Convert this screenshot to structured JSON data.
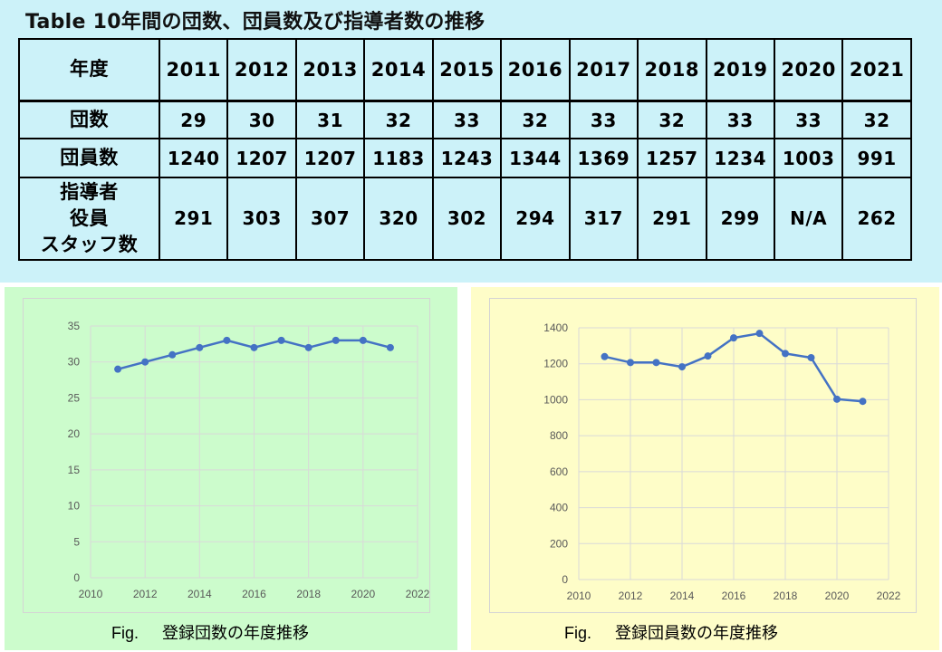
{
  "table": {
    "title": "Table 10年間の団数、団員数及び指導者数の推移",
    "row_labels": {
      "year": "年度",
      "groups": "団数",
      "members": "団員数",
      "leaders": [
        "指導者",
        "役員",
        "スタッフ数"
      ]
    },
    "years": [
      "2011",
      "2012",
      "2013",
      "2014",
      "2015",
      "2016",
      "2017",
      "2018",
      "2019",
      "2020",
      "2021"
    ],
    "groups": [
      "29",
      "30",
      "31",
      "32",
      "33",
      "32",
      "33",
      "32",
      "33",
      "33",
      "32"
    ],
    "members": [
      "1240",
      "1207",
      "1207",
      "1183",
      "1243",
      "1344",
      "1369",
      "1257",
      "1234",
      "1003",
      "991"
    ],
    "leaders": [
      "291",
      "303",
      "307",
      "320",
      "302",
      "294",
      "317",
      "291",
      "299",
      "N/A",
      "262"
    ]
  },
  "colors": {
    "table_bg": "#ccf2f9",
    "left_panel_bg": "#ccfccc",
    "right_panel_bg": "#fefdc8",
    "line": "#4472c4",
    "grid": "#d9d9d9",
    "axis_text": "#595959"
  },
  "chart_data": [
    {
      "type": "line",
      "caption_fig": "Fig.",
      "caption_text": "登録団数の年度推移",
      "x": [
        2011,
        2012,
        2013,
        2014,
        2015,
        2016,
        2017,
        2018,
        2019,
        2020,
        2021
      ],
      "values": [
        29,
        30,
        31,
        32,
        33,
        32,
        33,
        32,
        33,
        33,
        32
      ],
      "xlim": [
        2010,
        2022
      ],
      "ylim": [
        0,
        35
      ],
      "xticks": [
        2010,
        2012,
        2014,
        2016,
        2018,
        2020,
        2022
      ],
      "yticks": [
        0,
        5,
        10,
        15,
        20,
        25,
        30,
        35
      ],
      "grid": true
    },
    {
      "type": "line",
      "caption_fig": "Fig.",
      "caption_text": "登録団員数の年度推移",
      "x": [
        2011,
        2012,
        2013,
        2014,
        2015,
        2016,
        2017,
        2018,
        2019,
        2020,
        2021
      ],
      "values": [
        1240,
        1207,
        1207,
        1183,
        1243,
        1344,
        1369,
        1257,
        1234,
        1003,
        991
      ],
      "xlim": [
        2010,
        2022
      ],
      "ylim": [
        0,
        1400
      ],
      "xticks": [
        2010,
        2012,
        2014,
        2016,
        2018,
        2020,
        2022
      ],
      "yticks": [
        0,
        200,
        400,
        600,
        800,
        1000,
        1200,
        1400
      ],
      "grid": true
    }
  ]
}
